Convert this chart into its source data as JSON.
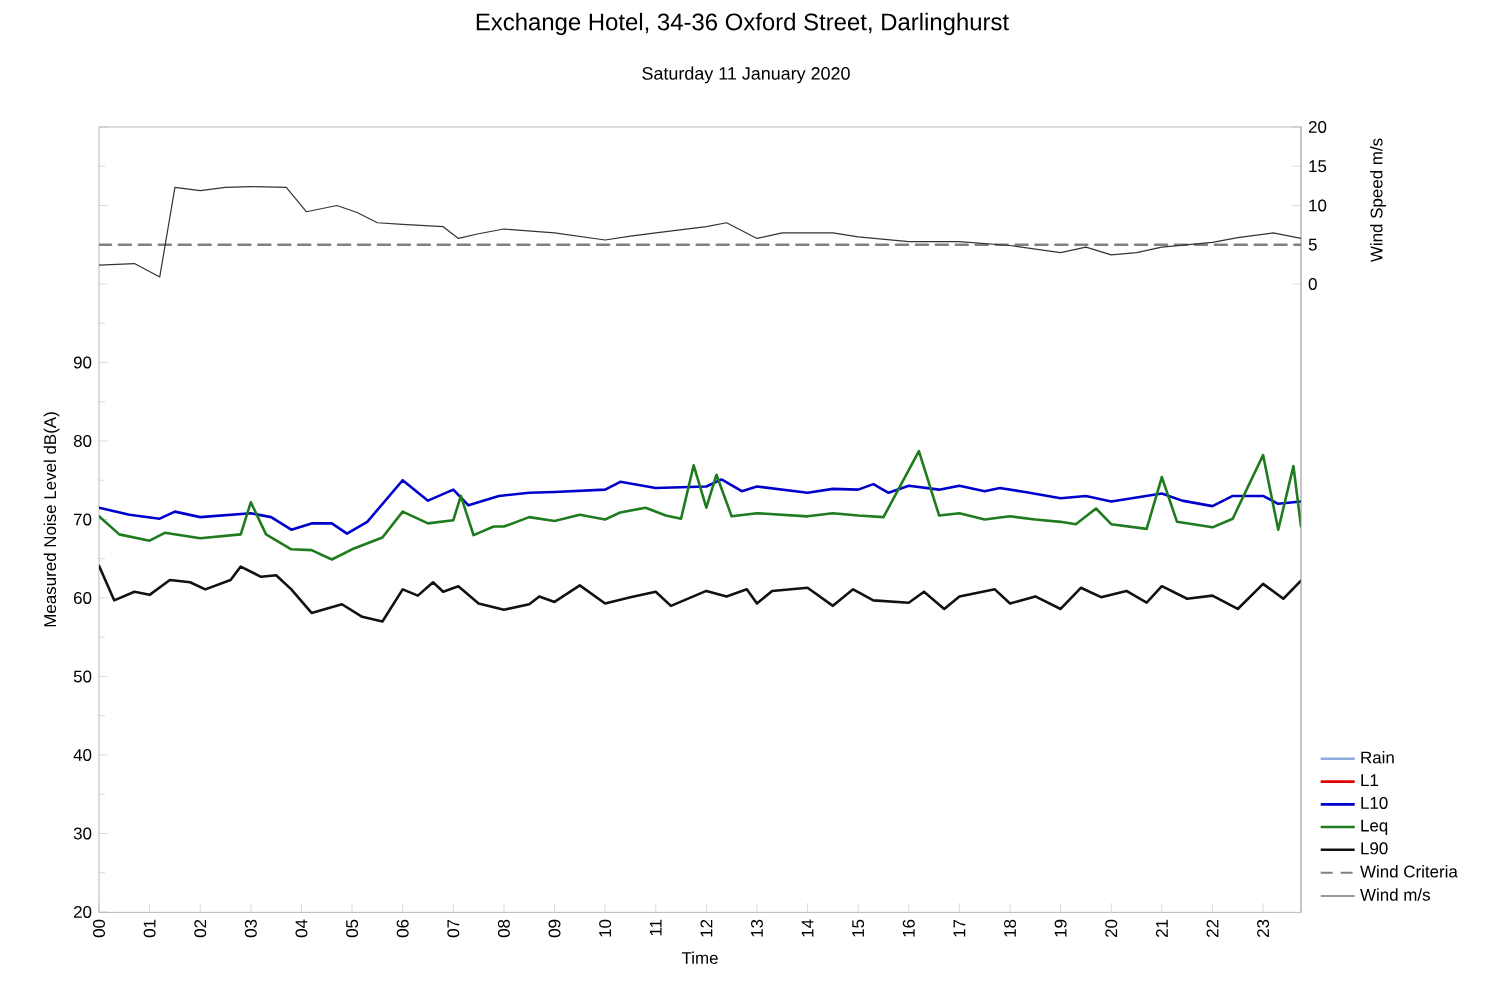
{
  "chart_data": {
    "type": "line",
    "title": "Exchange Hotel, 34-36 Oxford Street, Darlinghurst",
    "subtitle": "Saturday 11 January 2020",
    "xlabel": "Time",
    "ylabel": "Measured Noise Level dB(A)",
    "y2label": "Wind Speed m/s",
    "xlim": [
      0,
      23.75
    ],
    "ylim": [
      20,
      120
    ],
    "y2lim": [
      -80,
      20
    ],
    "xticks": [
      {
        "value": 0,
        "label": "00"
      },
      {
        "value": 1,
        "label": "01"
      },
      {
        "value": 2,
        "label": "02"
      },
      {
        "value": 3,
        "label": "03"
      },
      {
        "value": 4,
        "label": "04"
      },
      {
        "value": 5,
        "label": "05"
      },
      {
        "value": 6,
        "label": "06"
      },
      {
        "value": 7,
        "label": "07"
      },
      {
        "value": 8,
        "label": "08"
      },
      {
        "value": 9,
        "label": "09"
      },
      {
        "value": 10,
        "label": "10"
      },
      {
        "value": 11,
        "label": "11"
      },
      {
        "value": 12,
        "label": "12"
      },
      {
        "value": 13,
        "label": "13"
      },
      {
        "value": 14,
        "label": "14"
      },
      {
        "value": 15,
        "label": "15"
      },
      {
        "value": 16,
        "label": "16"
      },
      {
        "value": 17,
        "label": "17"
      },
      {
        "value": 18,
        "label": "18"
      },
      {
        "value": 19,
        "label": "19"
      },
      {
        "value": 20,
        "label": "20"
      },
      {
        "value": 21,
        "label": "21"
      },
      {
        "value": 22,
        "label": "22"
      },
      {
        "value": 23,
        "label": "23"
      }
    ],
    "yticks": [
      20,
      30,
      40,
      50,
      60,
      70,
      80,
      90,
      {
        "value": 100,
        "label": null
      },
      {
        "value": 110,
        "label": null
      },
      {
        "value": 120,
        "label": null
      }
    ],
    "y2ticks": [
      0,
      5,
      10,
      15,
      20
    ],
    "legend": "right",
    "ref_lines": [
      {
        "axis": "y2",
        "value": 5,
        "label": "Wind Criteria",
        "color": "#808080",
        "line_style": "dashed"
      }
    ],
    "series": [
      {
        "name": "Rain",
        "color": "#8eaadb"
      },
      {
        "name": "L1",
        "color": "#e00000"
      },
      {
        "name": "L10",
        "color": "#0000cc",
        "x": [
          0,
          0.6,
          1.2,
          1.5,
          2,
          3,
          3.4,
          3.8,
          4.2,
          4.6,
          4.9,
          5.3,
          6,
          6.5,
          7,
          7.3,
          7.9,
          8.5,
          9,
          10,
          10.3,
          11,
          12,
          12.3,
          12.7,
          13,
          14,
          14.5,
          15,
          15.3,
          15.6,
          16,
          16.6,
          17,
          17.5,
          17.8,
          18.3,
          19,
          19.5,
          20,
          21,
          21.4,
          22,
          22.4,
          23,
          23.3,
          23.75
        ],
        "values": [
          71.5,
          70.6,
          70.1,
          71.0,
          70.3,
          70.8,
          70.3,
          68.7,
          69.5,
          69.5,
          68.2,
          69.7,
          75.0,
          72.4,
          73.8,
          71.8,
          73.0,
          73.4,
          73.5,
          73.8,
          74.8,
          74.0,
          74.2,
          75.1,
          73.6,
          74.2,
          73.4,
          73.9,
          73.8,
          74.5,
          73.4,
          74.3,
          73.8,
          74.3,
          73.6,
          74.0,
          73.5,
          72.7,
          73.0,
          72.3,
          73.3,
          72.4,
          71.7,
          73.0,
          73.0,
          72.0,
          72.3
        ]
      },
      {
        "name": "Leq",
        "color": "#1e7b1e",
        "x": [
          0,
          0.4,
          1,
          1.3,
          2,
          2.8,
          3,
          3.3,
          3.8,
          4.2,
          4.6,
          5,
          5.6,
          6,
          6.5,
          7,
          7.15,
          7.4,
          7.8,
          8,
          8.5,
          9,
          9.5,
          10,
          10.3,
          10.8,
          11.2,
          11.5,
          11.75,
          12,
          12.2,
          12.5,
          13,
          14,
          14.5,
          15,
          15.5,
          16.2,
          16.6,
          17,
          17.5,
          18,
          18.5,
          19,
          19.3,
          19.7,
          20,
          20.7,
          21,
          21.3,
          22,
          22.4,
          23,
          23.3,
          23.6,
          23.75
        ],
        "values": [
          70.4,
          68.1,
          67.3,
          68.3,
          67.6,
          68.1,
          72.2,
          68.1,
          66.2,
          66.1,
          64.9,
          66.2,
          67.7,
          71.0,
          69.5,
          69.9,
          73.0,
          68.0,
          69.1,
          69.1,
          70.3,
          69.8,
          70.6,
          70.0,
          70.9,
          71.5,
          70.5,
          70.1,
          76.9,
          71.5,
          75.7,
          70.4,
          70.8,
          70.4,
          70.8,
          70.5,
          70.3,
          78.7,
          70.5,
          70.8,
          70.0,
          70.4,
          70.0,
          69.7,
          69.4,
          71.4,
          69.4,
          68.8,
          75.4,
          69.7,
          69.0,
          70.1,
          78.2,
          68.7,
          76.8,
          69.1
        ]
      },
      {
        "name": "L90",
        "color": "#111111",
        "x": [
          0,
          0.3,
          0.7,
          1,
          1.4,
          1.8,
          2.1,
          2.6,
          2.8,
          3.2,
          3.5,
          3.8,
          4.2,
          4.8,
          5.2,
          5.6,
          6,
          6.3,
          6.6,
          6.8,
          7.1,
          7.5,
          8,
          8.5,
          8.7,
          9,
          9.5,
          10,
          10.5,
          11,
          11.3,
          12,
          12.4,
          12.8,
          13,
          13.3,
          14,
          14.5,
          14.9,
          15.3,
          16,
          16.3,
          16.7,
          17,
          17.7,
          18,
          18.5,
          19,
          19.4,
          19.8,
          20.3,
          20.7,
          21,
          21.5,
          22,
          22.5,
          23,
          23.4,
          23.75
        ],
        "values": [
          64.1,
          59.7,
          60.8,
          60.4,
          62.3,
          62.0,
          61.1,
          62.3,
          64.0,
          62.7,
          62.9,
          61.1,
          58.1,
          59.2,
          57.6,
          57.0,
          61.1,
          60.3,
          62.0,
          60.8,
          61.5,
          59.3,
          58.5,
          59.2,
          60.2,
          59.5,
          61.6,
          59.3,
          60.1,
          60.8,
          59.0,
          60.9,
          60.2,
          61.1,
          59.3,
          60.9,
          61.3,
          59.0,
          61.1,
          59.7,
          59.4,
          60.8,
          58.6,
          60.2,
          61.1,
          59.3,
          60.2,
          58.6,
          61.3,
          60.1,
          60.9,
          59.4,
          61.5,
          59.9,
          60.3,
          58.6,
          61.8,
          59.9,
          62.2
        ]
      },
      {
        "name": "Wind m/s",
        "color": "#333333",
        "axis": "y2",
        "x": [
          0,
          0.7,
          1.2,
          1.5,
          2,
          2.5,
          3,
          3.7,
          4.1,
          4.7,
          5.1,
          5.5,
          6,
          6.8,
          7.1,
          7.5,
          8,
          9,
          10,
          10.5,
          11,
          12,
          12.4,
          13,
          13.5,
          14.5,
          15,
          16,
          17,
          18,
          19,
          19.5,
          20,
          20.5,
          21,
          22,
          22.5,
          23.2,
          23.75
        ],
        "values": [
          2.4,
          2.6,
          0.9,
          12.3,
          11.9,
          12.3,
          12.4,
          12.3,
          9.2,
          10.0,
          9.1,
          7.8,
          7.6,
          7.3,
          5.8,
          6.4,
          7.0,
          6.5,
          5.6,
          6.1,
          6.5,
          7.3,
          7.8,
          5.8,
          6.5,
          6.5,
          6.0,
          5.4,
          5.4,
          4.9,
          4.0,
          4.7,
          3.7,
          4.0,
          4.7,
          5.3,
          5.9,
          6.5,
          5.8
        ]
      }
    ]
  }
}
